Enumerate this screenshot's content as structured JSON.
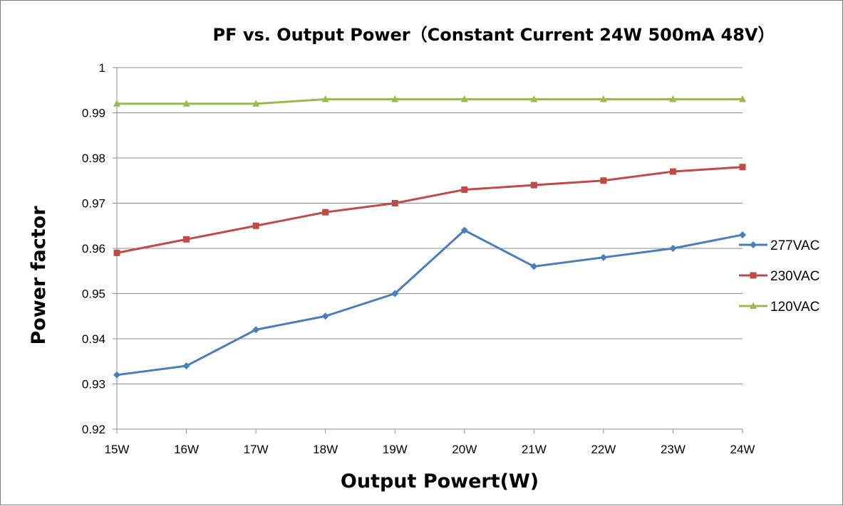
{
  "chart_data": {
    "type": "line",
    "title": "PF vs. Output Power（Constant Current 24W 500mA 48V）",
    "xlabel": "Output Powert(W)",
    "ylabel": "Power factor",
    "categories": [
      "15W",
      "16W",
      "17W",
      "18W",
      "19W",
      "20W",
      "21W",
      "22W",
      "23W",
      "24W"
    ],
    "ylim": [
      0.92,
      1.0
    ],
    "yticks": [
      "0.92",
      "0.93",
      "0.94",
      "0.95",
      "0.96",
      "0.97",
      "0.98",
      "0.99",
      "1"
    ],
    "grid": true,
    "legend_position": "right",
    "series": [
      {
        "name": "277VAC",
        "color": "#4a7ebb",
        "marker": "diamond",
        "values": [
          0.932,
          0.934,
          0.942,
          0.945,
          0.95,
          0.964,
          0.956,
          0.958,
          0.96,
          0.963
        ]
      },
      {
        "name": "230VAC",
        "color": "#be4b48",
        "marker": "square",
        "values": [
          0.959,
          0.962,
          0.965,
          0.968,
          0.97,
          0.973,
          0.974,
          0.975,
          0.977,
          0.978
        ]
      },
      {
        "name": "120VAC",
        "color": "#98b954",
        "marker": "triangle",
        "values": [
          0.992,
          0.992,
          0.992,
          0.993,
          0.993,
          0.993,
          0.993,
          0.993,
          0.993,
          0.993
        ]
      }
    ]
  }
}
